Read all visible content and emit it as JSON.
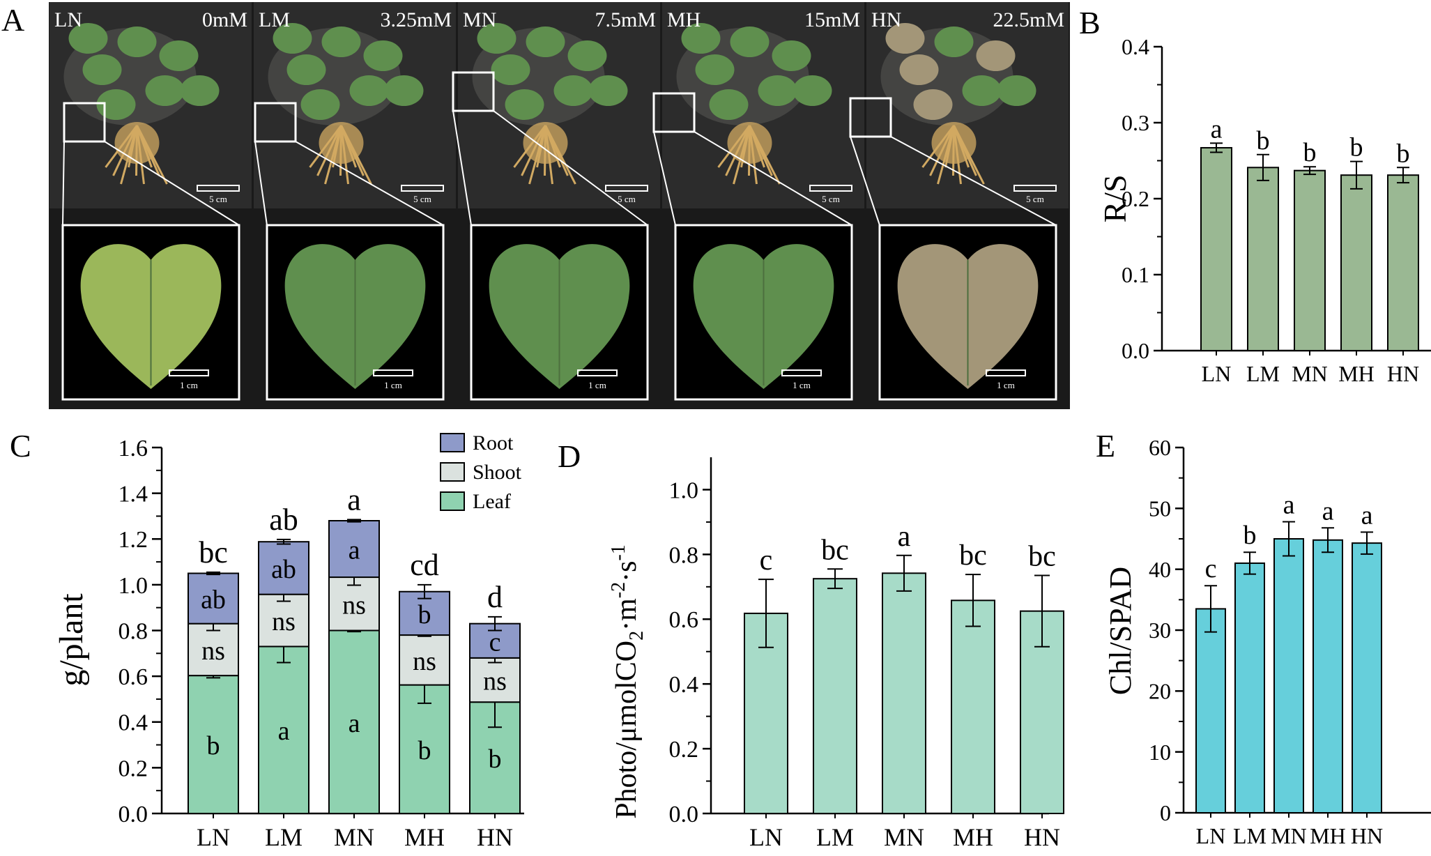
{
  "panel_letters": {
    "A": "A",
    "B": "B",
    "C": "C",
    "D": "D",
    "E": "E"
  },
  "photo_panel": {
    "treatments": [
      {
        "code": "LN",
        "concentration": "0mM",
        "scale_plant": "5 cm",
        "scale_leaf": "1 cm"
      },
      {
        "code": "LM",
        "concentration": "3.25mM",
        "scale_plant": "5 cm",
        "scale_leaf": "1 cm"
      },
      {
        "code": "MN",
        "concentration": "7.5mM",
        "scale_plant": "5 cm",
        "scale_leaf": "1 cm"
      },
      {
        "code": "MH",
        "concentration": "15mM",
        "scale_plant": "5 cm",
        "scale_leaf": "1 cm"
      },
      {
        "code": "HN",
        "concentration": "22.5mM",
        "scale_plant": "5 cm",
        "scale_leaf": "1 cm"
      }
    ],
    "colors": {
      "background": "#1c1c1c",
      "leaf_healthy": "#5f8f4e",
      "leaf_yellow": "#9bb75a",
      "leaf_damaged": "#a39678",
      "root": "#d1a962"
    }
  },
  "chart_data": [
    {
      "id": "B",
      "type": "bar",
      "categories": [
        "LN",
        "LM",
        "MN",
        "MH",
        "HN"
      ],
      "values": [
        0.267,
        0.241,
        0.237,
        0.231,
        0.231
      ],
      "errors": [
        0.006,
        0.017,
        0.005,
        0.018,
        0.01
      ],
      "significance": [
        "a",
        "b",
        "b",
        "b",
        "b"
      ],
      "ylabel": "R/S",
      "ylim": [
        0,
        0.4
      ],
      "yticks": [
        "0.0",
        "0.1",
        "0.2",
        "0.3",
        "0.4"
      ],
      "color": "#9ab893",
      "grid": false
    },
    {
      "id": "C",
      "type": "stacked-bar",
      "categories": [
        "LN",
        "LM",
        "MN",
        "MH",
        "HN"
      ],
      "series": [
        {
          "name": "Leaf",
          "values": [
            0.603,
            0.73,
            0.8,
            0.562,
            0.487
          ],
          "errors": [
            0.01,
            0.07,
            0.005,
            0.08,
            0.11
          ],
          "labels": [
            "b",
            "a",
            "a",
            "b",
            "b"
          ],
          "color": "#8fd2b0"
        },
        {
          "name": "Shoot",
          "values": [
            0.227,
            0.228,
            0.233,
            0.218,
            0.193
          ],
          "errors": [
            0.03,
            0.03,
            0.035,
            0.005,
            0.02
          ],
          "labels": [
            "ns",
            "ns",
            "ns",
            "ns",
            "ns"
          ],
          "color": "#dbe2df"
        },
        {
          "name": "Root",
          "values": [
            0.22,
            0.23,
            0.247,
            0.19,
            0.15
          ],
          "errors": [
            0.005,
            0.01,
            0.005,
            0.03,
            0.03
          ],
          "labels": [
            "ab",
            "ab",
            "a",
            "b",
            "c"
          ],
          "color": "#8e9ac9"
        }
      ],
      "totals_significance": [
        "bc",
        "ab",
        "a",
        "cd",
        "d"
      ],
      "ylabel": "g/plant",
      "ylim": [
        0,
        1.6
      ],
      "yticks": [
        "0.0",
        "0.2",
        "0.4",
        "0.6",
        "0.8",
        "1.0",
        "1.2",
        "1.4",
        "1.6"
      ],
      "legend_position": "top-right",
      "grid": false
    },
    {
      "id": "D",
      "type": "bar",
      "categories": [
        "LN",
        "LM",
        "MN",
        "MH",
        "HN"
      ],
      "values": [
        0.618,
        0.725,
        0.742,
        0.658,
        0.625
      ],
      "errors": [
        0.105,
        0.03,
        0.055,
        0.08,
        0.11
      ],
      "significance": [
        "c",
        "bc",
        "a",
        "bc",
        "bc"
      ],
      "ylabel_main": "Photo/μmolCO",
      "ylabel_sub": "2",
      "ylabel_dot1": "·m",
      "ylabel_sup1": "-2",
      "ylabel_dot2": "·s",
      "ylabel_sup2": "-1",
      "ylim": [
        0,
        1.1
      ],
      "yticks": [
        "0.0",
        "0.2",
        "0.4",
        "0.6",
        "0.8",
        "1.0"
      ],
      "color": "#a7dbc8",
      "grid": false
    },
    {
      "id": "E",
      "type": "bar",
      "categories": [
        "LN",
        "LM",
        "MN",
        "MH",
        "HN"
      ],
      "values": [
        33.5,
        41.0,
        45.0,
        44.8,
        44.3
      ],
      "errors": [
        3.8,
        1.8,
        2.8,
        2.0,
        1.8
      ],
      "significance": [
        "c",
        "b",
        "a",
        "a",
        "a"
      ],
      "ylabel": "Chl/SPAD",
      "ylim": [
        0,
        60
      ],
      "yticks": [
        "0",
        "10",
        "20",
        "30",
        "40",
        "50",
        "60"
      ],
      "color": "#66cfdb",
      "grid": false
    }
  ]
}
